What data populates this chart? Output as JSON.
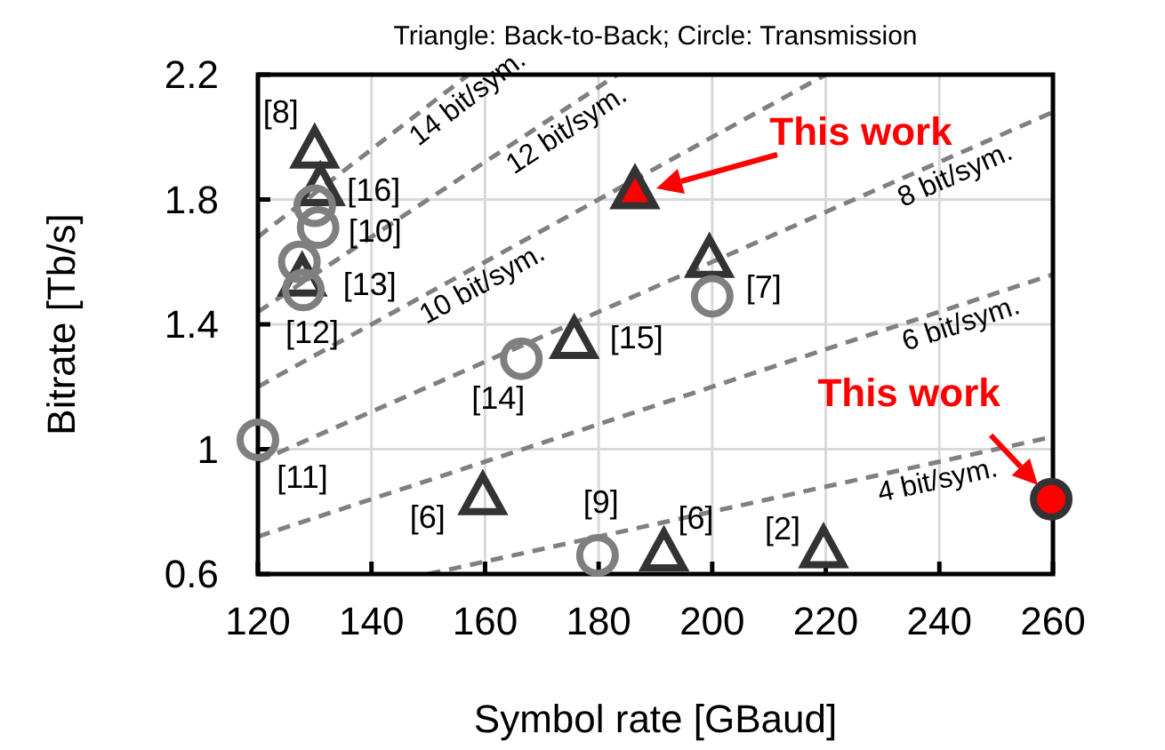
{
  "chart_data": {
    "type": "scatter",
    "title": "Triangle: Back-to-Back; Circle: Transmission",
    "xlabel": "Symbol rate [GBaud]",
    "ylabel": "Bitrate [Tb/s]",
    "xlim": [
      120,
      260
    ],
    "xticks": [
      120,
      140,
      160,
      180,
      200,
      220,
      240,
      260
    ],
    "ylim": [
      0.6,
      2.2
    ],
    "yticks": [
      0.6,
      1,
      1.4,
      1.8,
      2.2
    ],
    "grid": true,
    "series": [
      {
        "name": "4 bit/sym.",
        "type": "line",
        "color": "#808080",
        "line_style": "dashed",
        "x": [
          150,
          260
        ],
        "values": [
          0.6,
          1.04
        ]
      },
      {
        "name": "6 bit/sym.",
        "type": "line",
        "color": "#808080",
        "line_style": "dashed",
        "x": [
          120,
          260
        ],
        "values": [
          0.72,
          1.56
        ]
      },
      {
        "name": "8 bit/sym.",
        "type": "line",
        "color": "#808080",
        "line_style": "dashed",
        "x": [
          120,
          260
        ],
        "values": [
          0.96,
          2.08
        ]
      },
      {
        "name": "10 bit/sym.",
        "type": "line",
        "color": "#808080",
        "line_style": "dashed",
        "x": [
          120,
          220
        ],
        "values": [
          1.2,
          2.2
        ]
      },
      {
        "name": "12 bit/sym.",
        "type": "line",
        "color": "#808080",
        "line_style": "dashed",
        "x": [
          120,
          183.3
        ],
        "values": [
          1.44,
          2.2
        ]
      },
      {
        "name": "14 bit/sym.",
        "type": "line",
        "color": "#808080",
        "line_style": "dashed",
        "x": [
          120,
          157.1
        ],
        "values": [
          1.68,
          2.2
        ]
      },
      {
        "color": "#333333",
        "marker": "triangle",
        "x": [
          130,
          131,
          127.8,
          175.7,
          199.5,
          159.6,
          191.5,
          219.6
        ],
        "values": [
          1.95,
          1.83,
          1.54,
          1.34,
          1.6,
          0.84,
          0.66,
          0.67
        ]
      },
      {
        "color": "#7f7f7f",
        "marker": "circle",
        "x": [
          130,
          130.6,
          127.3,
          128,
          166.4,
          200,
          120,
          179.8
        ],
        "values": [
          1.78,
          1.71,
          1.6,
          1.51,
          1.29,
          1.49,
          1.03,
          0.66
        ]
      },
      {
        "color": "#ff0000",
        "marker": "triangle",
        "x": [
          186.4
        ],
        "values": [
          1.82
        ]
      },
      {
        "color": "#ff0000",
        "marker": "circle",
        "x": [
          259.7
        ],
        "values": [
          0.84
        ]
      }
    ],
    "annotations": [
      {
        "text": "[8]",
        "x": 130,
        "y": 1.95
      },
      {
        "text": "[16]",
        "x": 131,
        "y": 1.83
      },
      {
        "text": "[10]",
        "x": 130.6,
        "y": 1.71
      },
      {
        "text": "[13]",
        "x": 127.8,
        "y": 1.54
      },
      {
        "text": "[12]",
        "x": 128,
        "y": 1.51
      },
      {
        "text": "[14]",
        "x": 166.4,
        "y": 1.29
      },
      {
        "text": "[15]",
        "x": 175.7,
        "y": 1.34
      },
      {
        "text": "[7]",
        "x": 200,
        "y": 1.49
      },
      {
        "text": "[11]",
        "x": 120,
        "y": 1.03
      },
      {
        "text": "[6]",
        "x": 159.6,
        "y": 0.84
      },
      {
        "text": "[9]",
        "x": 179.8,
        "y": 0.66
      },
      {
        "text": "[6]",
        "x": 191.5,
        "y": 0.66
      },
      {
        "text": "[2]",
        "x": 219.6,
        "y": 0.67
      },
      "This work",
      {
        "text": "This work",
        "x": 259.7,
        "y": 0.84
      }
    ]
  }
}
